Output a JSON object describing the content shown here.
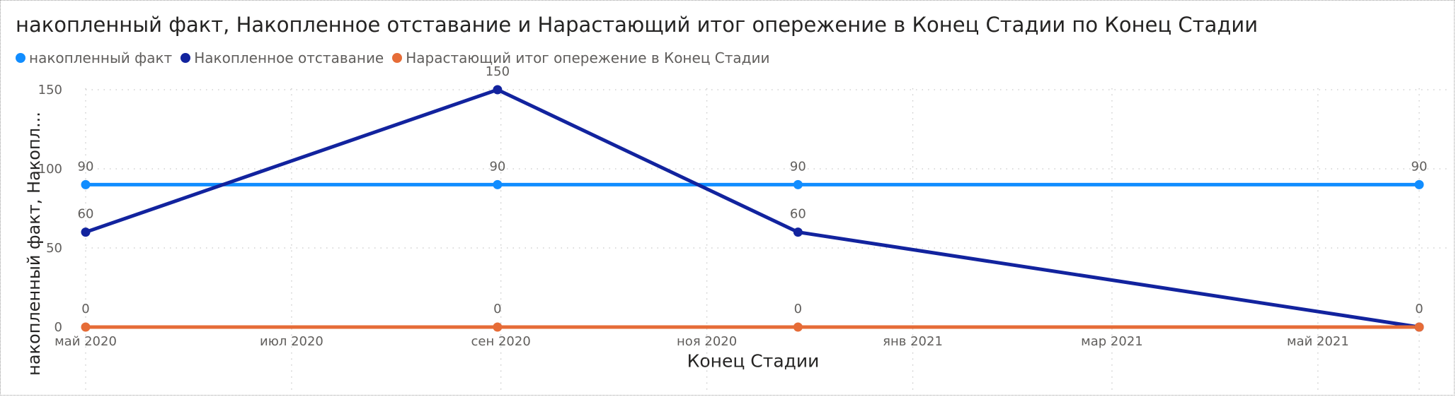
{
  "chart_data": {
    "type": "line",
    "title": "накопленный факт, Накопленное отставание и Нарастающий итог опережение в Конец Стадии по Конец Стадии",
    "xlabel": "Конец Стадии",
    "ylabel": "накопленный факт, Накопл...",
    "x_ticks": [
      {
        "label": "май 2020",
        "date": "2020-05-01"
      },
      {
        "label": "июл 2020",
        "date": "2020-07-01"
      },
      {
        "label": "сен 2020",
        "date": "2020-09-01"
      },
      {
        "label": "ноя 2020",
        "date": "2020-11-01"
      },
      {
        "label": "янв 2021",
        "date": "2021-01-01"
      },
      {
        "label": "мар 2021",
        "date": "2021-03-01"
      },
      {
        "label": "май 2021",
        "date": "2021-05-01"
      }
    ],
    "x": [
      "2020-05-01",
      "2020-08-31",
      "2020-11-28",
      "2021-05-31"
    ],
    "xlim": [
      "2020-05-01",
      "2021-05-31"
    ],
    "ylim": [
      0,
      150
    ],
    "y_ticks": [
      0,
      50,
      100,
      150
    ],
    "grid": true,
    "legend_position": "top-left",
    "series": [
      {
        "name": "накопленный факт",
        "color": "#118DFF",
        "values": [
          90,
          90,
          90,
          90
        ],
        "labels": [
          "90",
          "90",
          "90",
          "90"
        ]
      },
      {
        "name": "Накопленное отставание",
        "color": "#12239E",
        "values": [
          60,
          150,
          60,
          0
        ],
        "labels": [
          "60",
          "150",
          "60",
          ""
        ]
      },
      {
        "name": "Нарастающий итог опережение в Конец Стадии",
        "color": "#E66C37",
        "values": [
          0,
          0,
          0,
          0
        ],
        "labels": [
          "0",
          "0",
          "0",
          "0"
        ]
      }
    ]
  }
}
